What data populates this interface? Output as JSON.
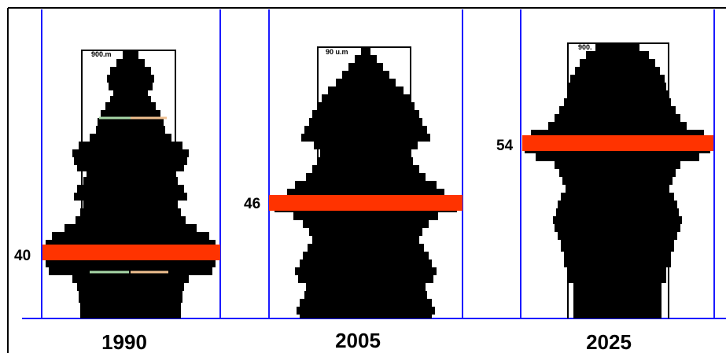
{
  "colors": {
    "frame": "#000000",
    "axis": "#1a1aff",
    "pyramid": "#000000",
    "median_line": "#ff3300",
    "outline": "#000000",
    "accent_green": "#a8d8a8",
    "accent_tan": "#f0c090"
  },
  "chart_data": {
    "type": "other",
    "description_source": "population pyramids with median age markers",
    "panels": [
      {
        "year": "1990",
        "median_age": 40,
        "median_label": "40",
        "top_label": "900.m"
      },
      {
        "year": "2005",
        "median_age": 46,
        "median_label": "46",
        "top_label": "90 u.m"
      },
      {
        "year": "2025",
        "median_age": 54,
        "median_label": "54",
        "top_label": "900."
      }
    ]
  }
}
